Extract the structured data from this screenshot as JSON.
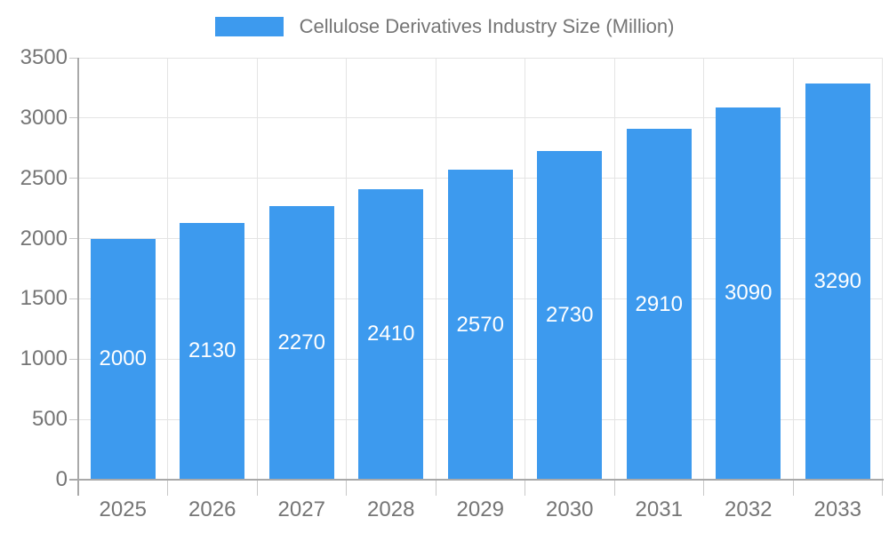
{
  "legend": {
    "label": "Cellulose Derivatives Industry Size (Million)"
  },
  "chart_data": {
    "type": "bar",
    "title": "Cellulose Derivatives Industry Size (Million)",
    "categories": [
      "2025",
      "2026",
      "2027",
      "2028",
      "2029",
      "2030",
      "2031",
      "2032",
      "2033"
    ],
    "values": [
      2000,
      2130,
      2270,
      2410,
      2570,
      2730,
      2910,
      3090,
      3290
    ],
    "xlabel": "",
    "ylabel": "",
    "ylim": [
      0,
      3500
    ],
    "yticks": [
      0,
      500,
      1000,
      1500,
      2000,
      2500,
      3000,
      3500
    ],
    "grid": true,
    "legend_position": "top",
    "value_label_position": "inside-center",
    "colors": {
      "bar": "#3d9aee",
      "grid": "#e4e4e4",
      "axis": "#a9a9a9",
      "tick": "#c8c8c8",
      "label": "#757575",
      "value_label": "#ffffff",
      "background": "#ffffff"
    }
  }
}
